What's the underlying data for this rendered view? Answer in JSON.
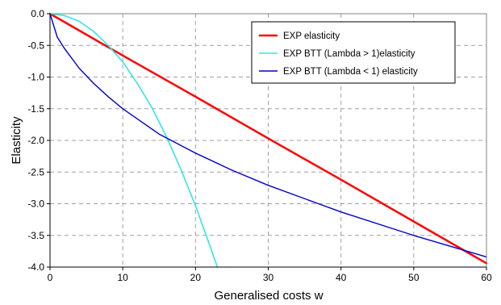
{
  "chart_data": {
    "type": "line",
    "title": "",
    "xlabel": "Generalised costs w",
    "ylabel": "Elasticity",
    "xlim": [
      0,
      60
    ],
    "ylim": [
      -4.0,
      0.0
    ],
    "xticks": [
      0,
      10,
      20,
      30,
      40,
      50,
      60
    ],
    "xtick_labels": [
      "0",
      "10",
      "20",
      "30",
      "40",
      "50",
      "60"
    ],
    "yticks": [
      0.0,
      -0.5,
      -1.0,
      -1.5,
      -2.0,
      -2.5,
      -3.0,
      -3.5,
      -4.0
    ],
    "ytick_labels": [
      "0.0",
      "-0.5",
      "-1.0",
      "-1.5",
      "-2.0",
      "-2.5",
      "-3.0",
      "-3.5",
      "-4.0"
    ],
    "grid": "dashed",
    "legend_position": "top-right",
    "series": [
      {
        "name": "EXP elasticity",
        "color": "#ff0000",
        "x": [
          0,
          10,
          20,
          30,
          40,
          50,
          60
        ],
        "y": [
          0.0,
          -0.66,
          -1.31,
          -1.97,
          -2.62,
          -3.28,
          -3.94
        ]
      },
      {
        "name": "EXP BTT (Lambda > 1)elasticity",
        "color": "#33e5e5",
        "x": [
          0,
          2,
          4,
          6,
          8,
          10,
          12,
          14,
          16,
          18,
          20,
          22,
          23
        ],
        "y": [
          0.0,
          -0.03,
          -0.12,
          -0.28,
          -0.5,
          -0.76,
          -1.1,
          -1.48,
          -1.94,
          -2.46,
          -3.03,
          -3.67,
          -4.0
        ]
      },
      {
        "name": "EXP BTT (Lambda < 1) elasticity",
        "color": "#0000cc",
        "x": [
          0,
          1,
          2,
          4,
          6,
          8,
          10,
          15,
          20,
          25,
          30,
          40,
          50,
          60
        ],
        "y": [
          0.0,
          -0.37,
          -0.55,
          -0.86,
          -1.1,
          -1.31,
          -1.5,
          -1.9,
          -2.2,
          -2.47,
          -2.71,
          -3.13,
          -3.5,
          -3.84
        ]
      }
    ]
  }
}
